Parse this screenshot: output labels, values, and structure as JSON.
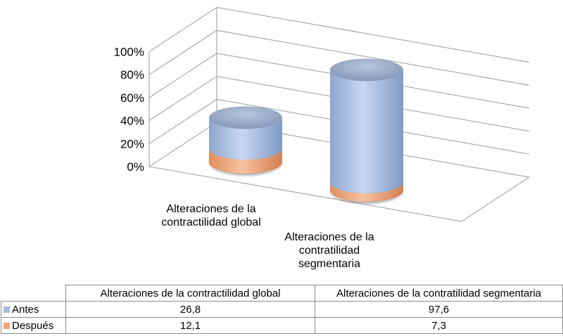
{
  "chart_data": {
    "type": "bar",
    "subtype": "3d-stacked-cylinder",
    "categories": [
      "Alteraciones de la contractilidad global",
      "Alteraciones de la contratilidad segmentaria"
    ],
    "category_axis_labels": [
      [
        "Alteraciones de la",
        "contractilidad global"
      ],
      [
        "Alteraciones de la",
        "contratilidad",
        "segmentaria"
      ]
    ],
    "series": [
      {
        "name": "Antes",
        "values": [
          26.8,
          97.6
        ],
        "color": "#a4bde3"
      },
      {
        "name": "Después",
        "values": [
          12.1,
          7.3
        ],
        "color": "#f2a77c"
      }
    ],
    "ylim": [
      0,
      100
    ],
    "y_ticks": [
      "0%",
      "20%",
      "40%",
      "60%",
      "80%",
      "100%"
    ],
    "grid": true,
    "legend": "data-table"
  },
  "table": {
    "header": [
      "Alteraciones de la contractilidad global",
      "Alteraciones de la contratilidad segmentaria"
    ],
    "rows": [
      {
        "label": "Antes",
        "values": [
          "26,8",
          "97,6"
        ]
      },
      {
        "label": "Después",
        "values": [
          "12,1",
          "7,3"
        ]
      }
    ]
  }
}
